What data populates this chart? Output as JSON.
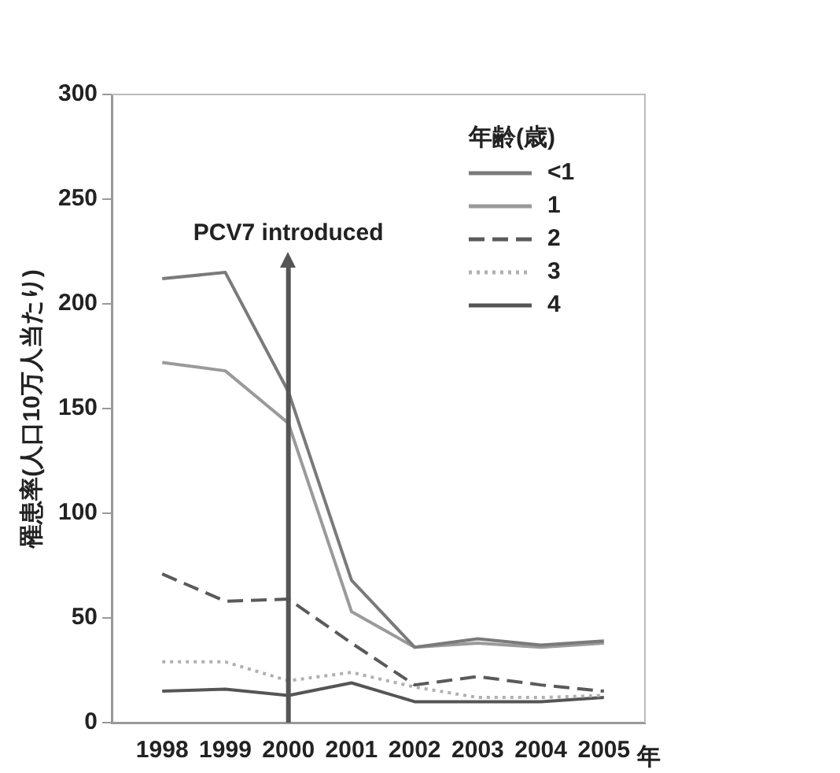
{
  "chart_data": {
    "type": "line",
    "xlabel": "年",
    "ylabel": "罹患率(人口10万人当たり)",
    "legend_title": "年齢(歳)",
    "legend": "top right",
    "grid": false,
    "marker": "none",
    "x": [
      1998,
      1999,
      2000,
      2001,
      2002,
      2003,
      2004,
      2005
    ],
    "xlim": [
      1997.2,
      2005.65
    ],
    "xticks": [
      1998,
      1999,
      2000,
      2001,
      2002,
      2003,
      2004,
      2005
    ],
    "ylim": [
      0,
      300
    ],
    "yticks": [
      0,
      50,
      100,
      150,
      200,
      250,
      300
    ],
    "series": [
      {
        "name": "<1",
        "color": "#7a7a7a",
        "line_style": "solid",
        "values": [
          212,
          215,
          158,
          68,
          36,
          40,
          37,
          39
        ]
      },
      {
        "name": "1",
        "color": "#9a9a9a",
        "line_style": "solid",
        "values": [
          172,
          168,
          143,
          53,
          36,
          38,
          36,
          38
        ]
      },
      {
        "name": "2",
        "color": "#5a5a5a",
        "line_style": "dashed",
        "values": [
          71,
          58,
          59,
          38,
          18,
          22,
          18,
          15
        ]
      },
      {
        "name": "3",
        "color": "#b0b0b0",
        "line_style": "dotted",
        "values": [
          29,
          29,
          20,
          24,
          17,
          12,
          12,
          13
        ]
      },
      {
        "name": "4",
        "color": "#555555",
        "line_style": "solid",
        "values": [
          15,
          16,
          13,
          19,
          10,
          10,
          10,
          12
        ]
      }
    ],
    "ref_lines": [
      {
        "axis": "x",
        "value": 2000,
        "label": "PCV7 introduced",
        "color": "#555555"
      }
    ]
  }
}
